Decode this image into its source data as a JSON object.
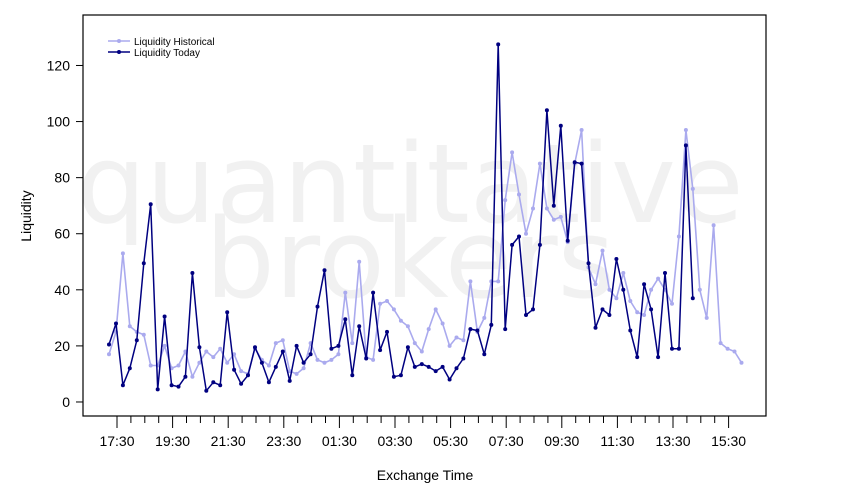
{
  "chart_data": {
    "type": "line",
    "title": "",
    "xlabel": "Exchange Time",
    "ylabel": "Liquidity",
    "ylim": [
      -5,
      138
    ],
    "y_ticks": [
      0,
      20,
      40,
      60,
      80,
      100,
      120
    ],
    "x_tick_labels": [
      "17:30",
      "19:30",
      "21:30",
      "23:30",
      "01:30",
      "03:30",
      "05:30",
      "07:30",
      "09:30",
      "11:30",
      "13:30",
      "15:30"
    ],
    "watermark": [
      "quantitative",
      "brokers"
    ],
    "legend_position": "top-left",
    "grid": false,
    "series": [
      {
        "name": "Liquidity Historical",
        "color": "#aaaaee",
        "values": [
          17,
          25,
          53,
          27,
          25,
          24,
          13,
          13,
          20,
          12,
          13,
          18,
          9,
          14,
          18,
          16,
          19,
          14,
          17,
          11,
          10,
          19,
          15,
          13,
          21,
          22,
          11,
          10,
          12,
          21,
          15,
          14,
          15,
          17,
          39,
          21,
          50,
          16,
          15,
          35,
          36,
          33,
          29,
          27,
          21,
          18,
          26,
          33,
          28,
          20,
          23,
          22,
          43,
          25,
          30,
          43,
          43,
          72,
          89,
          74,
          60,
          69,
          85,
          69,
          65,
          66,
          57,
          85,
          97,
          48,
          42,
          54,
          40,
          37,
          46,
          36,
          32,
          31,
          40,
          44,
          40,
          35,
          59,
          97,
          76,
          40,
          30,
          63,
          21,
          19,
          18,
          14
        ]
      },
      {
        "name": "Liquidity Today",
        "color": "#000080",
        "values": [
          20.5,
          28,
          6,
          12,
          22,
          49.5,
          70.5,
          4.5,
          30.5,
          6,
          5.5,
          9,
          46,
          19.5,
          4,
          7,
          6,
          32,
          11.5,
          6.5,
          9.5,
          19.5,
          14,
          7,
          12.5,
          18,
          7.5,
          20,
          14,
          17,
          34,
          47,
          19,
          20,
          29.5,
          9.5,
          27,
          15.5,
          39,
          18.5,
          25,
          9,
          9.5,
          19.5,
          12.5,
          13.5,
          12.5,
          11,
          12.5,
          8,
          12,
          15.5,
          26,
          25.5,
          17,
          27.5,
          127.5,
          26,
          56,
          59,
          31,
          33,
          56,
          104,
          70,
          98.5,
          57.5,
          85.5,
          85,
          49.5,
          26.5,
          33,
          31,
          51,
          40,
          25.5,
          16,
          42,
          33,
          16,
          46,
          19,
          19,
          91.5,
          37
        ]
      }
    ]
  }
}
